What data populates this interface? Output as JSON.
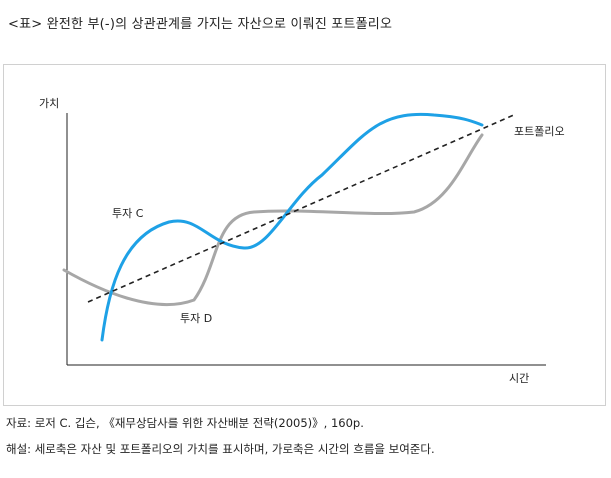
{
  "caption": "<표> 완전한 부(-)의 상관관계를 가지는 자산으로 이뤄진 포트폴리오",
  "diagram": {
    "ylabel": "가치",
    "xlabel": "시간",
    "series": [
      {
        "name": "투자 C",
        "color": "#1ea1e6"
      },
      {
        "name": "투자 D",
        "color": "#a7a7a7"
      },
      {
        "name": "포트폴리오",
        "color": "#222222"
      }
    ]
  },
  "source": "자료: 로저 C. 깁슨, 《재무상담사를 위한 자산배분 전략(2005)》, 160p.",
  "note": "해설: 세로축은 자산 및 포트폴리오의 가치를 표시하며, 가로축은 시간의 흐름을 보여준다."
}
